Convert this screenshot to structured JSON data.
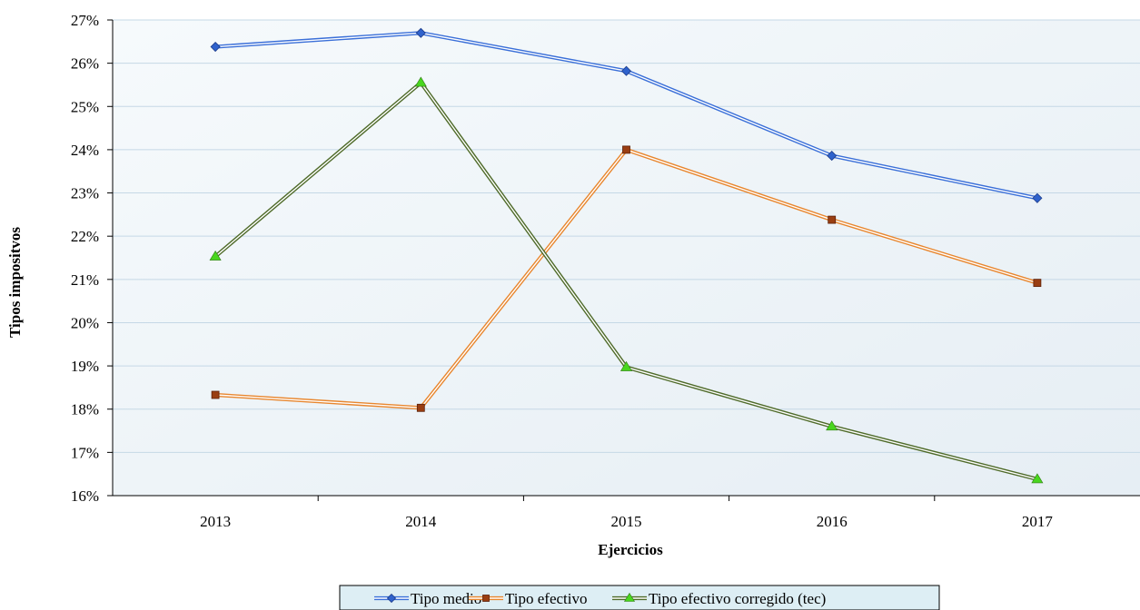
{
  "chart_data": {
    "type": "line",
    "xlabel": "Ejercicios",
    "ylabel": "Tipos impositvos",
    "categories": [
      "2013",
      "2014",
      "2015",
      "2016",
      "2017"
    ],
    "ylim": [
      16,
      27
    ],
    "ytick_values": [
      16,
      17,
      18,
      19,
      20,
      21,
      22,
      23,
      24,
      25,
      26,
      27
    ],
    "ytick_labels": [
      "16%",
      "17%",
      "18%",
      "19%",
      "20%",
      "21%",
      "22%",
      "23%",
      "24%",
      "25%",
      "26%",
      "27%"
    ],
    "grid": true,
    "legend_position": "bottom",
    "series": [
      {
        "name": "Tipo medio",
        "values": [
          26.38,
          26.7,
          25.82,
          23.86,
          22.88
        ],
        "color": "#3a6fd8",
        "marker": "diamond",
        "marker_color": "#2f62cc"
      },
      {
        "name": "Tipo efectivo",
        "values": [
          18.33,
          18.03,
          24.0,
          22.38,
          20.92
        ],
        "color": "#e8862e",
        "marker": "square",
        "marker_color": "#9a3e12"
      },
      {
        "name": "Tipo efectivo corregido (tec)",
        "values": [
          21.53,
          25.55,
          18.97,
          17.6,
          16.38
        ],
        "color": "#4f6b2a",
        "marker": "triangle",
        "marker_color": "#49d61e"
      }
    ]
  }
}
